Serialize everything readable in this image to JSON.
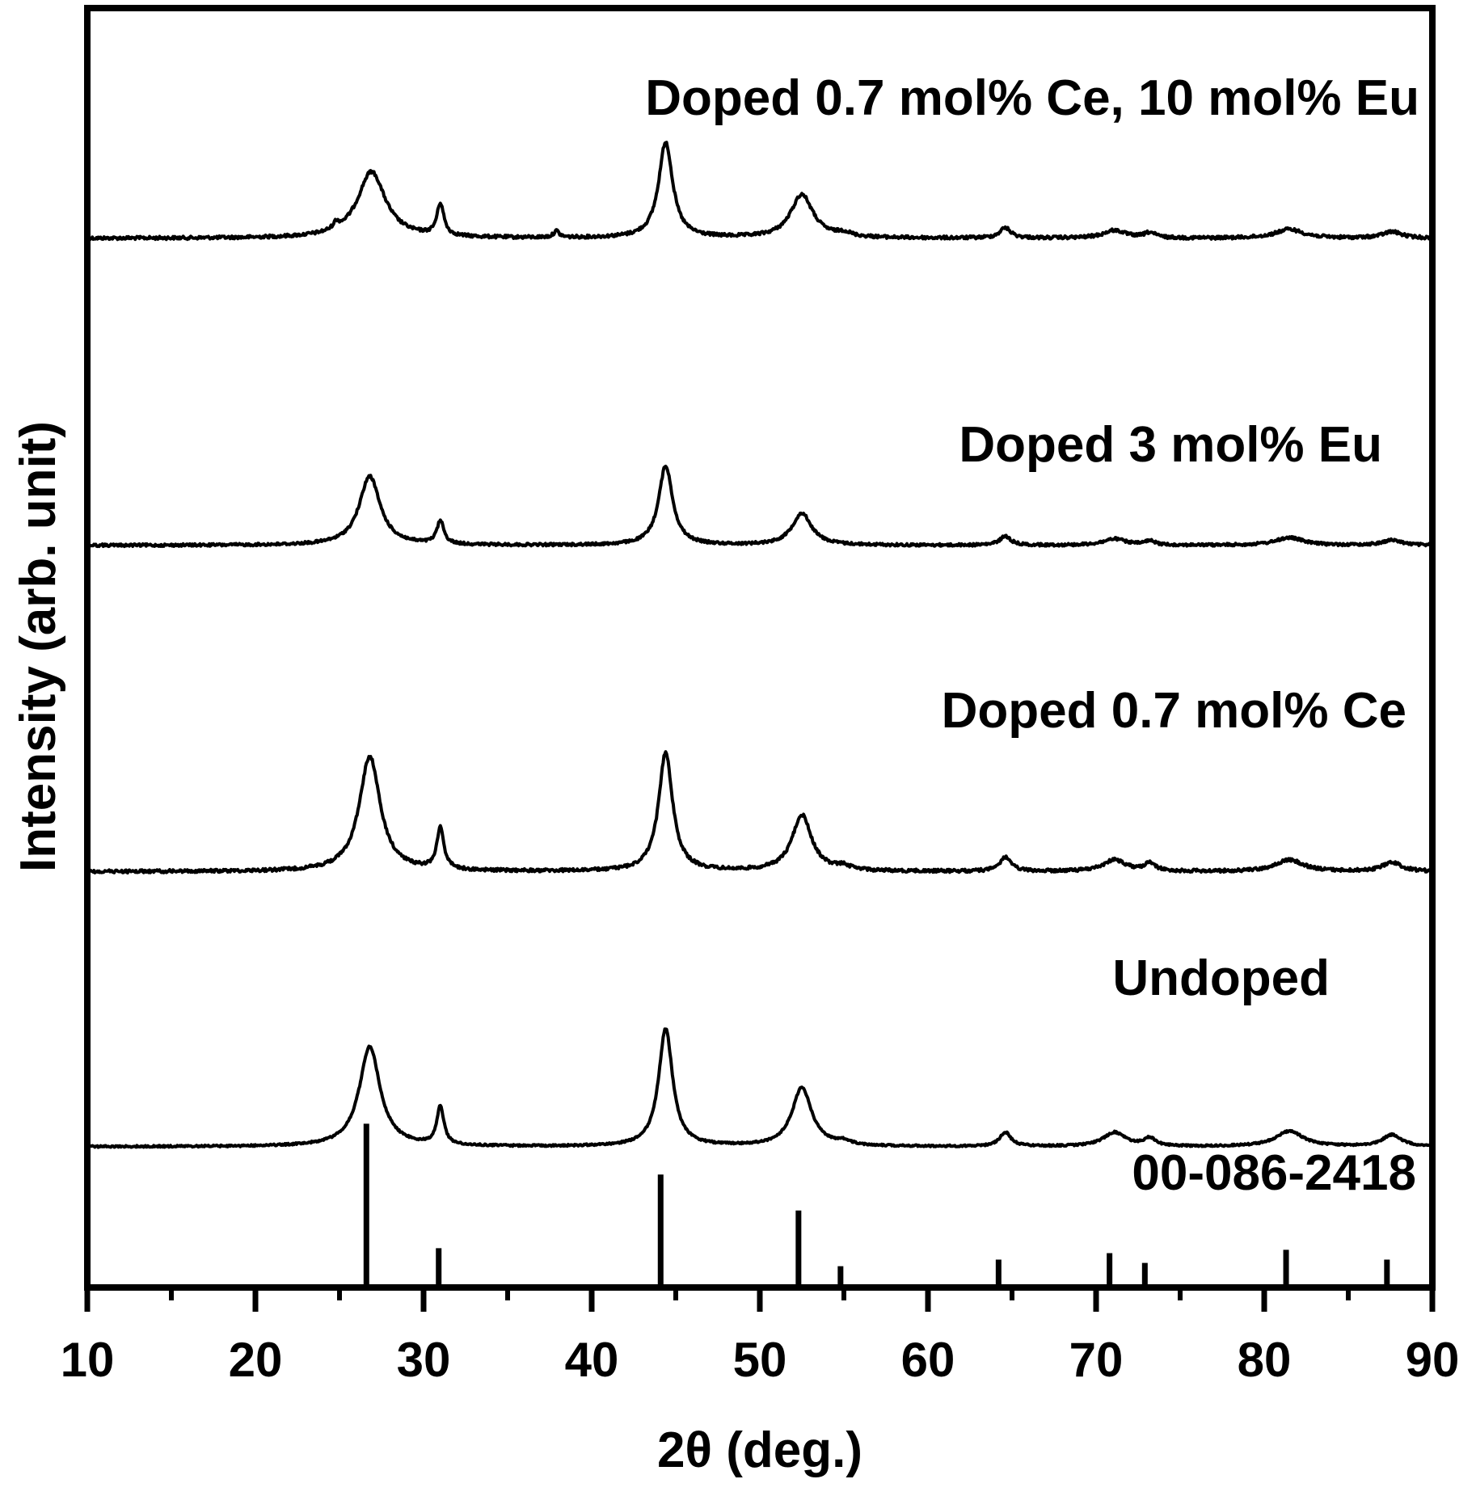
{
  "chart_data": {
    "type": "line",
    "title": "",
    "xlabel": "2θ (deg.)",
    "ylabel": "Intensity (arb. unit)",
    "xlim": [
      10,
      90
    ],
    "x_ticks": [
      10,
      20,
      30,
      40,
      50,
      60,
      70,
      80,
      90
    ],
    "y_ticks_shown": false,
    "grid": false,
    "line_color": "#000000",
    "series": [
      {
        "name": "Doped 0.7 mol% Ce, 10 mol% Eu",
        "baseline": 0.18,
        "noise": 0.0012,
        "peaks": [
          {
            "x": 24.8,
            "h": 0.005,
            "w": 0.2
          },
          {
            "x": 26.9,
            "h": 0.052,
            "w": 1.0
          },
          {
            "x": 31.0,
            "h": 0.025,
            "w": 0.25
          },
          {
            "x": 37.9,
            "h": 0.005,
            "w": 0.2
          },
          {
            "x": 44.4,
            "h": 0.075,
            "w": 0.5
          },
          {
            "x": 52.5,
            "h": 0.034,
            "w": 0.8
          },
          {
            "x": 55.0,
            "h": 0.003,
            "w": 0.5
          },
          {
            "x": 64.6,
            "h": 0.008,
            "w": 0.4
          },
          {
            "x": 71.1,
            "h": 0.006,
            "w": 0.8
          },
          {
            "x": 73.2,
            "h": 0.004,
            "w": 0.4
          },
          {
            "x": 81.5,
            "h": 0.007,
            "w": 1.0
          },
          {
            "x": 87.6,
            "h": 0.005,
            "w": 0.7
          }
        ]
      },
      {
        "name": "Doped 3 mol% Eu",
        "baseline": 0.42,
        "noise": 0.001,
        "peaks": [
          {
            "x": 26.8,
            "h": 0.054,
            "w": 0.75
          },
          {
            "x": 31.0,
            "h": 0.018,
            "w": 0.25
          },
          {
            "x": 44.4,
            "h": 0.062,
            "w": 0.5
          },
          {
            "x": 52.5,
            "h": 0.025,
            "w": 0.7
          },
          {
            "x": 64.6,
            "h": 0.007,
            "w": 0.4
          },
          {
            "x": 71.1,
            "h": 0.005,
            "w": 0.8
          },
          {
            "x": 73.2,
            "h": 0.003,
            "w": 0.4
          },
          {
            "x": 81.5,
            "h": 0.006,
            "w": 1.0
          },
          {
            "x": 87.6,
            "h": 0.004,
            "w": 0.7
          }
        ]
      },
      {
        "name": "Doped 0.7 mol% Ce",
        "baseline": 0.675,
        "noise": 0.0012,
        "peaks": [
          {
            "x": 26.8,
            "h": 0.09,
            "w": 0.75
          },
          {
            "x": 31.0,
            "h": 0.033,
            "w": 0.25
          },
          {
            "x": 44.4,
            "h": 0.093,
            "w": 0.5
          },
          {
            "x": 52.5,
            "h": 0.044,
            "w": 0.7
          },
          {
            "x": 55.0,
            "h": 0.003,
            "w": 0.5
          },
          {
            "x": 64.6,
            "h": 0.011,
            "w": 0.4
          },
          {
            "x": 71.1,
            "h": 0.009,
            "w": 0.8
          },
          {
            "x": 73.2,
            "h": 0.006,
            "w": 0.4
          },
          {
            "x": 81.5,
            "h": 0.009,
            "w": 1.0
          },
          {
            "x": 87.6,
            "h": 0.007,
            "w": 0.7
          }
        ]
      },
      {
        "name": "Undoped",
        "baseline": 0.89,
        "noise": 0.0007,
        "peaks": [
          {
            "x": 26.8,
            "h": 0.078,
            "w": 0.75
          },
          {
            "x": 31.0,
            "h": 0.03,
            "w": 0.25
          },
          {
            "x": 44.4,
            "h": 0.092,
            "w": 0.5
          },
          {
            "x": 52.5,
            "h": 0.046,
            "w": 0.7
          },
          {
            "x": 55.0,
            "h": 0.003,
            "w": 0.5
          },
          {
            "x": 64.6,
            "h": 0.011,
            "w": 0.4
          },
          {
            "x": 71.1,
            "h": 0.011,
            "w": 0.8
          },
          {
            "x": 73.2,
            "h": 0.006,
            "w": 0.4
          },
          {
            "x": 81.5,
            "h": 0.012,
            "w": 1.0
          },
          {
            "x": 87.6,
            "h": 0.009,
            "w": 0.7
          }
        ]
      }
    ],
    "reference": {
      "name": "00-086-2418",
      "sticks": [
        {
          "x": 26.6,
          "h": 1.0
        },
        {
          "x": 30.9,
          "h": 0.24
        },
        {
          "x": 44.1,
          "h": 0.69
        },
        {
          "x": 52.3,
          "h": 0.47
        },
        {
          "x": 54.8,
          "h": 0.13
        },
        {
          "x": 64.2,
          "h": 0.17
        },
        {
          "x": 70.8,
          "h": 0.21
        },
        {
          "x": 72.9,
          "h": 0.15
        },
        {
          "x": 81.3,
          "h": 0.23
        },
        {
          "x": 87.3,
          "h": 0.17
        }
      ]
    }
  }
}
